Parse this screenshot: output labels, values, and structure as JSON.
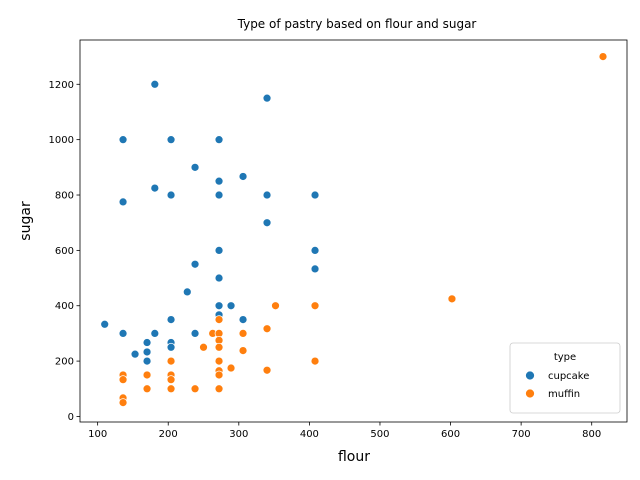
{
  "chart_data": {
    "type": "scatter",
    "title": "Type of pastry based on flour and sugar",
    "xlabel": "flour",
    "ylabel": "sugar",
    "xlim": [
      75,
      850
    ],
    "ylim": [
      -20,
      1360
    ],
    "xticks": [
      100,
      200,
      300,
      400,
      500,
      600,
      700,
      800
    ],
    "yticks": [
      0,
      200,
      400,
      600,
      800,
      1000,
      1200
    ],
    "grid": false,
    "legend": {
      "title": "type",
      "placement": "lower-right"
    },
    "series": [
      {
        "name": "cupcake",
        "color": "#1f77b4",
        "points": [
          [
            181,
            1200
          ],
          [
            340,
            1150
          ],
          [
            136,
            1000
          ],
          [
            204,
            1000
          ],
          [
            272,
            1000
          ],
          [
            238,
            900
          ],
          [
            306,
            867
          ],
          [
            272,
            850
          ],
          [
            181,
            825
          ],
          [
            204,
            800
          ],
          [
            272,
            800
          ],
          [
            340,
            800
          ],
          [
            408,
            800
          ],
          [
            136,
            775
          ],
          [
            340,
            700
          ],
          [
            272,
            600
          ],
          [
            408,
            600
          ],
          [
            238,
            550
          ],
          [
            408,
            533
          ],
          [
            272,
            500
          ],
          [
            227,
            450
          ],
          [
            272,
            400
          ],
          [
            289,
            400
          ],
          [
            272,
            367
          ],
          [
            204,
            350
          ],
          [
            306,
            350
          ],
          [
            110,
            333
          ],
          [
            136,
            300
          ],
          [
            181,
            300
          ],
          [
            238,
            300
          ],
          [
            170,
            267
          ],
          [
            204,
            267
          ],
          [
            204,
            250
          ],
          [
            170,
            233
          ],
          [
            153,
            225
          ],
          [
            170,
            200
          ]
        ]
      },
      {
        "name": "muffin",
        "color": "#ff7f0e",
        "points": [
          [
            816,
            1300
          ],
          [
            602,
            425
          ],
          [
            352,
            400
          ],
          [
            408,
            400
          ],
          [
            340,
            317
          ],
          [
            263,
            300
          ],
          [
            272,
            300
          ],
          [
            306,
            300
          ],
          [
            272,
            275
          ],
          [
            250,
            250
          ],
          [
            272,
            250
          ],
          [
            306,
            238
          ],
          [
            204,
            200
          ],
          [
            272,
            200
          ],
          [
            408,
            200
          ],
          [
            289,
            175
          ],
          [
            340,
            167
          ],
          [
            272,
            165
          ],
          [
            272,
            150
          ],
          [
            136,
            150
          ],
          [
            170,
            150
          ],
          [
            204,
            150
          ],
          [
            136,
            133
          ],
          [
            204,
            133
          ],
          [
            170,
            100
          ],
          [
            204,
            100
          ],
          [
            238,
            100
          ],
          [
            272,
            100
          ],
          [
            136,
            67
          ],
          [
            136,
            50
          ],
          [
            272,
            350
          ]
        ]
      }
    ]
  }
}
